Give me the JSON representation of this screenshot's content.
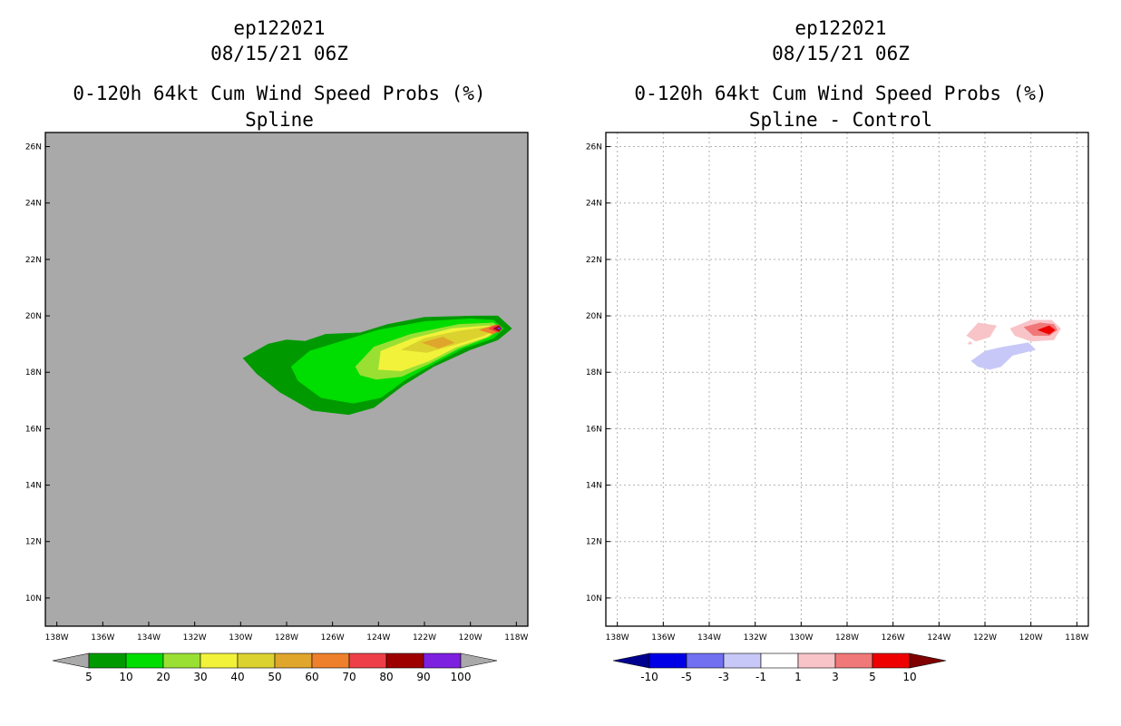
{
  "panels": [
    {
      "storm_id": "ep122021",
      "datetime": "08/15/21 06Z",
      "title": "0-120h 64kt Cum Wind Speed Probs (%)",
      "subtitle": "Spline"
    },
    {
      "storm_id": "ep122021",
      "datetime": "08/15/21 06Z",
      "title": "0-120h 64kt Cum Wind Speed Probs (%)",
      "subtitle": "Spline - Control"
    }
  ],
  "chart_data": [
    {
      "type": "heatmap",
      "title": "0-120h 64kt Cum Wind Speed Probs (%)",
      "subtitle": "Spline",
      "background_color": "#a9a9a9",
      "grid": false,
      "xlim": [
        -138.5,
        -117.5
      ],
      "ylim": [
        9,
        26.5
      ],
      "x_ticks": [
        -138,
        -136,
        -134,
        -132,
        -130,
        -128,
        -126,
        -124,
        -122,
        -120,
        -118
      ],
      "x_tick_labels": [
        "138W",
        "136W",
        "134W",
        "132W",
        "130W",
        "128W",
        "126W",
        "124W",
        "122W",
        "120W",
        "118W"
      ],
      "y_ticks": [
        10,
        12,
        14,
        16,
        18,
        20,
        22,
        24,
        26
      ],
      "y_tick_labels": [
        "10N",
        "12N",
        "14N",
        "16N",
        "18N",
        "20N",
        "22N",
        "24N",
        "26N"
      ],
      "colorbar": {
        "levels": [
          "5",
          "10",
          "20",
          "30",
          "40",
          "50",
          "60",
          "70",
          "80",
          "90",
          "100"
        ],
        "colors": [
          "#009a00",
          "#00dd00",
          "#99e033",
          "#f2f23a",
          "#dcd22f",
          "#e0a52b",
          "#ee802b",
          "#ee3f48",
          "#9e0000",
          "#7e20e0"
        ],
        "under_color": "#a9a9a9",
        "over_color": "#a9a9a9"
      },
      "contours": [
        {
          "level": 5,
          "color": "#009a00",
          "polygon": [
            [
              -129.9,
              18.5
            ],
            [
              -128.8,
              19.0
            ],
            [
              -128.0,
              19.15
            ],
            [
              -127.2,
              19.1
            ],
            [
              -126.3,
              19.35
            ],
            [
              -124.8,
              19.4
            ],
            [
              -123.6,
              19.7
            ],
            [
              -122.0,
              19.95
            ],
            [
              -119.8,
              20.0
            ],
            [
              -118.8,
              20.0
            ],
            [
              -118.2,
              19.55
            ],
            [
              -118.8,
              19.15
            ],
            [
              -120.0,
              18.8
            ],
            [
              -121.6,
              18.2
            ],
            [
              -122.9,
              17.55
            ],
            [
              -124.2,
              16.75
            ],
            [
              -125.3,
              16.5
            ],
            [
              -126.9,
              16.65
            ],
            [
              -128.3,
              17.3
            ],
            [
              -129.3,
              17.95
            ]
          ]
        },
        {
          "level": 10,
          "color": "#00dd00",
          "polygon": [
            [
              -127.8,
              18.2
            ],
            [
              -127.0,
              18.75
            ],
            [
              -125.6,
              19.1
            ],
            [
              -124.0,
              19.5
            ],
            [
              -122.0,
              19.8
            ],
            [
              -120.0,
              19.9
            ],
            [
              -119.0,
              19.85
            ],
            [
              -118.55,
              19.55
            ],
            [
              -119.0,
              19.2
            ],
            [
              -120.3,
              18.85
            ],
            [
              -121.6,
              18.3
            ],
            [
              -122.8,
              17.75
            ],
            [
              -123.9,
              17.1
            ],
            [
              -125.1,
              16.9
            ],
            [
              -126.5,
              17.1
            ],
            [
              -127.5,
              17.7
            ]
          ]
        },
        {
          "level": 20,
          "color": "#99e033",
          "polygon": [
            [
              -125.0,
              18.2
            ],
            [
              -124.2,
              18.9
            ],
            [
              -122.6,
              19.35
            ],
            [
              -120.5,
              19.7
            ],
            [
              -119.0,
              19.75
            ],
            [
              -118.65,
              19.55
            ],
            [
              -119.2,
              19.25
            ],
            [
              -120.5,
              18.85
            ],
            [
              -121.8,
              18.3
            ],
            [
              -123.0,
              17.85
            ],
            [
              -124.1,
              17.75
            ],
            [
              -124.8,
              17.9
            ]
          ]
        },
        {
          "level": 30,
          "color": "#f2f23a",
          "polygon": [
            [
              -124.0,
              18.1
            ],
            [
              -123.9,
              18.75
            ],
            [
              -122.5,
              19.2
            ],
            [
              -120.8,
              19.55
            ],
            [
              -119.2,
              19.65
            ],
            [
              -118.75,
              19.55
            ],
            [
              -119.3,
              19.25
            ],
            [
              -120.6,
              18.9
            ],
            [
              -121.8,
              18.4
            ],
            [
              -123.0,
              18.05
            ]
          ]
        },
        {
          "level": 40,
          "color": "#dcd22f",
          "polygon": [
            [
              -123.0,
              18.8
            ],
            [
              -122.0,
              19.2
            ],
            [
              -120.6,
              19.45
            ],
            [
              -119.3,
              19.6
            ],
            [
              -118.85,
              19.55
            ],
            [
              -119.4,
              19.3
            ],
            [
              -120.6,
              19.0
            ],
            [
              -121.9,
              18.7
            ]
          ]
        },
        {
          "level": 50,
          "color": "#e0a52b",
          "polygon": [
            [
              -122.1,
              19.05
            ],
            [
              -121.2,
              19.25
            ],
            [
              -120.7,
              19.05
            ],
            [
              -121.4,
              18.85
            ]
          ]
        },
        {
          "level": 60,
          "color": "#ee802b",
          "polygon": [
            [
              -119.6,
              19.5
            ],
            [
              -118.9,
              19.68
            ],
            [
              -118.7,
              19.55
            ],
            [
              -119.0,
              19.35
            ]
          ]
        },
        {
          "level": 70,
          "color": "#ee3f48",
          "polygon": [
            [
              -119.2,
              19.55
            ],
            [
              -118.8,
              19.7
            ],
            [
              -118.62,
              19.55
            ],
            [
              -118.8,
              19.4
            ]
          ]
        },
        {
          "level": 80,
          "color": "#9e0000",
          "polygon": [
            [
              -119.0,
              19.55
            ],
            [
              -118.75,
              19.65
            ],
            [
              -118.65,
              19.55
            ],
            [
              -118.75,
              19.45
            ]
          ]
        },
        {
          "level": 90,
          "color": "#7e20e0",
          "polygon": [
            [
              -118.85,
              19.55
            ],
            [
              -118.73,
              19.6
            ],
            [
              -118.68,
              19.55
            ],
            [
              -118.73,
              19.5
            ]
          ]
        }
      ]
    },
    {
      "type": "heatmap",
      "title": "0-120h 64kt Cum Wind Speed Probs (%)",
      "subtitle": "Spline - Control",
      "background_color": "#ffffff",
      "grid": true,
      "xlim": [
        -138.5,
        -117.5
      ],
      "ylim": [
        9,
        26.5
      ],
      "x_ticks": [
        -138,
        -136,
        -134,
        -132,
        -130,
        -128,
        -126,
        -124,
        -122,
        -120,
        -118
      ],
      "x_tick_labels": [
        "138W",
        "136W",
        "134W",
        "132W",
        "130W",
        "128W",
        "126W",
        "124W",
        "122W",
        "120W",
        "118W"
      ],
      "y_ticks": [
        10,
        12,
        14,
        16,
        18,
        20,
        22,
        24,
        26
      ],
      "y_tick_labels": [
        "10N",
        "12N",
        "14N",
        "16N",
        "18N",
        "20N",
        "22N",
        "24N",
        "26N"
      ],
      "colorbar": {
        "levels": [
          "-10",
          "-5",
          "-3",
          "-1",
          "1",
          "3",
          "5",
          "10"
        ],
        "colors": [
          "#0000e6",
          "#7070f0",
          "#c8c8f8",
          "#ffffff",
          "#f8c4c8",
          "#f07878",
          "#ee0000"
        ],
        "under_color": "#000090",
        "over_color": "#800000"
      },
      "contours": [
        {
          "level": 1,
          "color": "#f8c4c8",
          "polygon": [
            [
              -122.8,
              19.3
            ],
            [
              -122.3,
              19.75
            ],
            [
              -121.5,
              19.65
            ],
            [
              -121.8,
              19.25
            ],
            [
              -122.4,
              19.1
            ]
          ]
        },
        {
          "level": 1,
          "color": "#f8c4c8",
          "polygon": [
            [
              -122.75,
              19.0
            ],
            [
              -122.65,
              19.1
            ],
            [
              -122.55,
              19.0
            ]
          ]
        },
        {
          "level": 1,
          "color": "#f8c4c8",
          "polygon": [
            [
              -120.9,
              19.55
            ],
            [
              -120.0,
              19.85
            ],
            [
              -119.1,
              19.85
            ],
            [
              -118.7,
              19.55
            ],
            [
              -119.0,
              19.15
            ],
            [
              -120.0,
              19.1
            ],
            [
              -120.7,
              19.3
            ]
          ]
        },
        {
          "level": 3,
          "color": "#f07878",
          "polygon": [
            [
              -120.3,
              19.6
            ],
            [
              -119.6,
              19.75
            ],
            [
              -119.0,
              19.7
            ],
            [
              -118.85,
              19.5
            ],
            [
              -119.2,
              19.3
            ],
            [
              -119.9,
              19.3
            ]
          ]
        },
        {
          "level": 5,
          "color": "#ee0000",
          "polygon": [
            [
              -119.7,
              19.5
            ],
            [
              -119.2,
              19.65
            ],
            [
              -118.95,
              19.5
            ],
            [
              -119.2,
              19.35
            ]
          ]
        },
        {
          "level": -1,
          "color": "#c8c8f8",
          "polygon": [
            [
              -122.6,
              18.4
            ],
            [
              -122.0,
              18.75
            ],
            [
              -121.2,
              18.9
            ],
            [
              -120.1,
              19.05
            ],
            [
              -119.8,
              18.8
            ],
            [
              -120.8,
              18.6
            ],
            [
              -121.3,
              18.2
            ],
            [
              -121.8,
              18.1
            ],
            [
              -122.3,
              18.2
            ]
          ]
        }
      ]
    }
  ]
}
